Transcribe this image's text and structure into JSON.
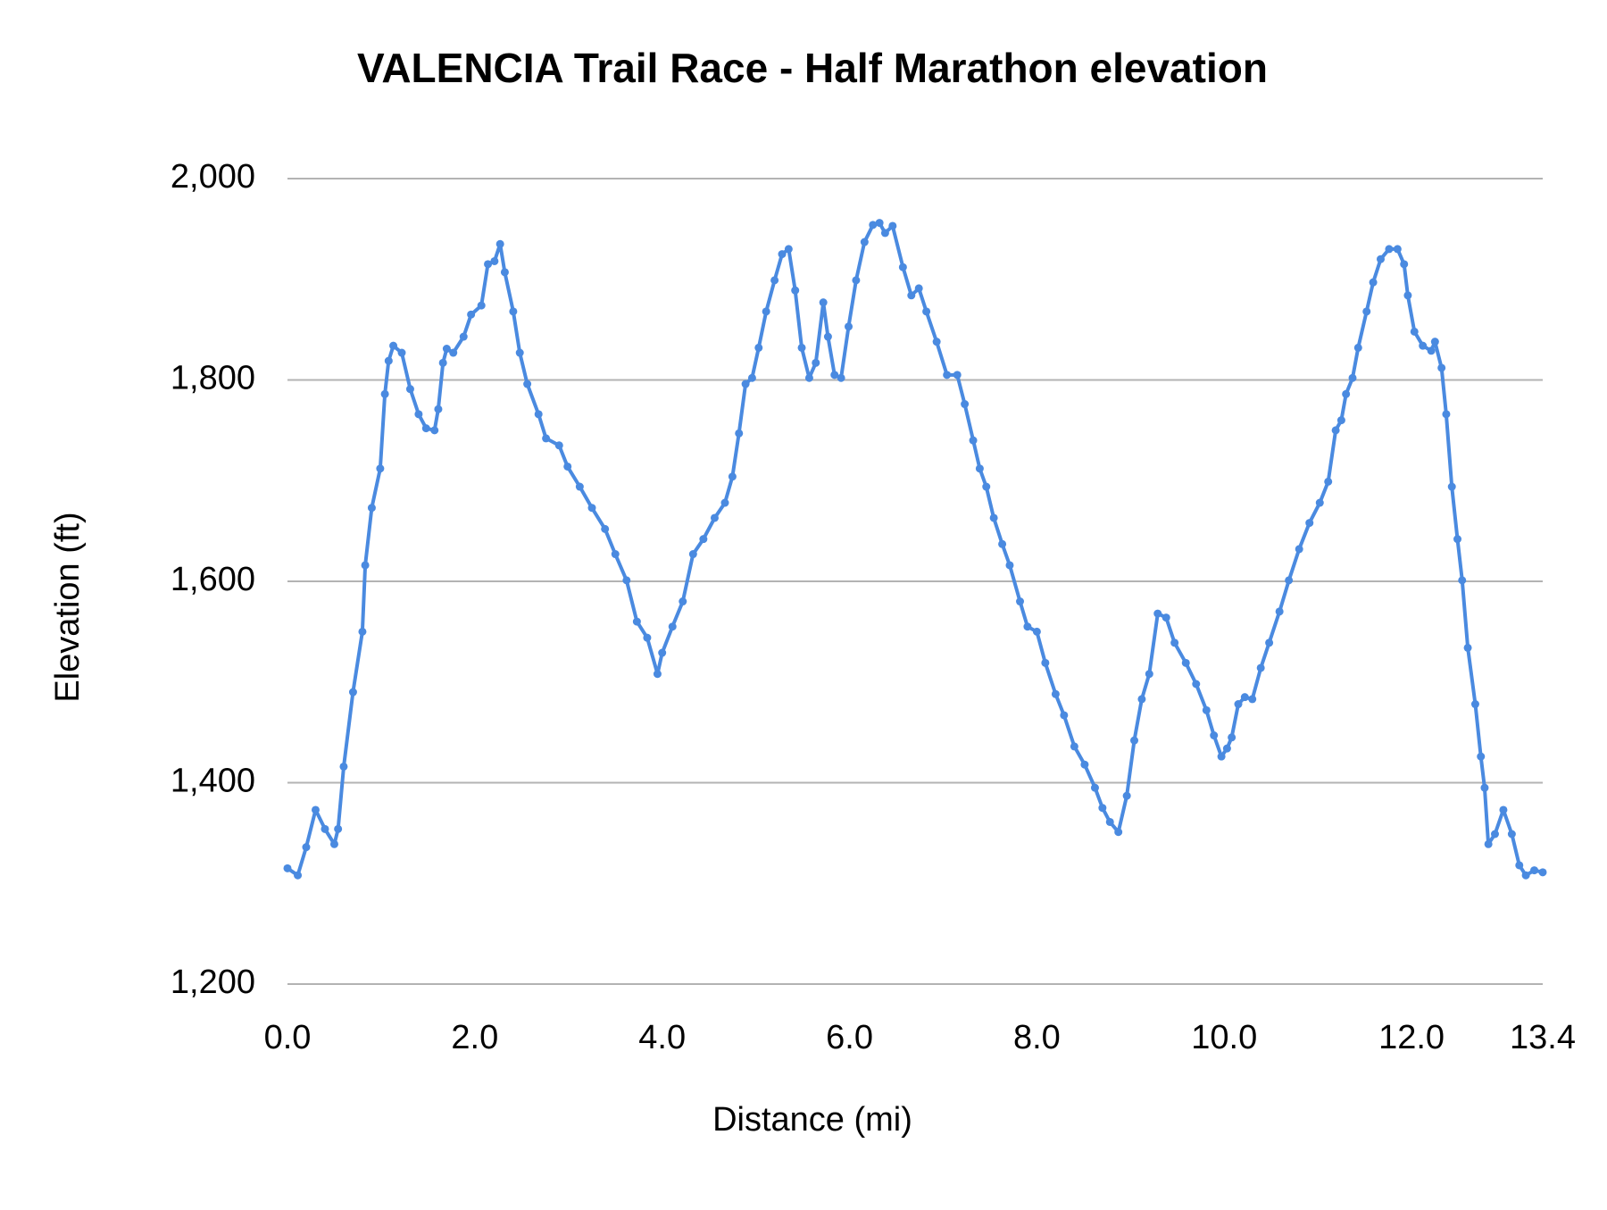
{
  "chart_data": {
    "type": "line",
    "title": "VALENCIA Trail Race - Half Marathon elevation",
    "x_label": "Distance (mi)",
    "y_label": "Elevation (ft)",
    "color": "#4a8ae0",
    "grid": true,
    "xlim": [
      0,
      13.4
    ],
    "ylim": [
      1200,
      2000
    ],
    "xticks": [
      {
        "value": 0,
        "label": "0.0"
      },
      {
        "value": 2,
        "label": "2.0"
      },
      {
        "value": 4,
        "label": "4.0"
      },
      {
        "value": 6,
        "label": "6.0"
      },
      {
        "value": 8,
        "label": "8.0"
      },
      {
        "value": 10,
        "label": "10.0"
      },
      {
        "value": 12,
        "label": "12.0"
      },
      13.4
    ],
    "yticks": [
      {
        "value": 1200,
        "label": "1,200"
      },
      {
        "value": 1400,
        "label": "1,400"
      },
      {
        "value": 1600,
        "label": "1,600"
      },
      {
        "value": 1800,
        "label": "1,800"
      },
      {
        "value": 2000,
        "label": "2,000"
      }
    ],
    "x": [
      0.0,
      0.11,
      0.2,
      0.3,
      0.4,
      0.5,
      0.54,
      0.6,
      0.7,
      0.8,
      0.83,
      0.9,
      0.99,
      1.04,
      1.08,
      1.13,
      1.22,
      1.31,
      1.4,
      1.48,
      1.57,
      1.61,
      1.66,
      1.7,
      1.77,
      1.88,
      1.96,
      2.07,
      2.14,
      2.21,
      2.27,
      2.32,
      2.41,
      2.48,
      2.56,
      2.68,
      2.76,
      2.9,
      2.99,
      3.12,
      3.25,
      3.39,
      3.5,
      3.62,
      3.73,
      3.84,
      3.95,
      4.0,
      4.11,
      4.22,
      4.33,
      4.44,
      4.56,
      4.67,
      4.75,
      4.82,
      4.89,
      4.96,
      5.03,
      5.11,
      5.2,
      5.28,
      5.35,
      5.42,
      5.49,
      5.57,
      5.64,
      5.72,
      5.77,
      5.84,
      5.91,
      5.99,
      6.07,
      6.16,
      6.25,
      6.32,
      6.38,
      6.46,
      6.57,
      6.66,
      6.74,
      6.82,
      6.93,
      7.04,
      7.15,
      7.23,
      7.32,
      7.39,
      7.46,
      7.54,
      7.63,
      7.71,
      7.82,
      7.9,
      8.0,
      8.09,
      8.2,
      8.29,
      8.4,
      8.51,
      8.62,
      8.7,
      8.78,
      8.87,
      8.96,
      9.04,
      9.12,
      9.2,
      9.29,
      9.38,
      9.47,
      9.59,
      9.7,
      9.81,
      9.89,
      9.97,
      10.03,
      10.08,
      10.15,
      10.22,
      10.3,
      10.39,
      10.48,
      10.59,
      10.69,
      10.8,
      10.91,
      11.02,
      11.11,
      11.19,
      11.25,
      11.3,
      11.37,
      11.43,
      11.52,
      11.59,
      11.67,
      11.76,
      11.85,
      11.92,
      11.96,
      12.03,
      12.12,
      12.21,
      12.25,
      12.32,
      12.37,
      12.43,
      12.49,
      12.54,
      12.6,
      12.68,
      12.74,
      12.78,
      12.82,
      12.89,
      12.98,
      13.07,
      13.15,
      13.22,
      13.31,
      13.4
    ],
    "values": [
      1315,
      1308,
      1336,
      1373,
      1354,
      1339,
      1354,
      1416,
      1490,
      1550,
      1616,
      1673,
      1712,
      1786,
      1819,
      1834,
      1827,
      1791,
      1766,
      1752,
      1750,
      1771,
      1817,
      1831,
      1827,
      1843,
      1865,
      1874,
      1915,
      1918,
      1935,
      1907,
      1868,
      1827,
      1796,
      1766,
      1742,
      1735,
      1714,
      1694,
      1673,
      1652,
      1627,
      1601,
      1560,
      1544,
      1508,
      1529,
      1555,
      1580,
      1627,
      1642,
      1663,
      1678,
      1704,
      1747,
      1796,
      1802,
      1832,
      1868,
      1899,
      1925,
      1930,
      1889,
      1832,
      1802,
      1817,
      1877,
      1843,
      1805,
      1802,
      1853,
      1899,
      1937,
      1954,
      1956,
      1946,
      1953,
      1912,
      1884,
      1891,
      1868,
      1838,
      1805,
      1805,
      1776,
      1740,
      1712,
      1694,
      1663,
      1637,
      1616,
      1580,
      1555,
      1550,
      1519,
      1488,
      1467,
      1436,
      1418,
      1395,
      1375,
      1361,
      1351,
      1387,
      1442,
      1483,
      1508,
      1568,
      1564,
      1539,
      1519,
      1498,
      1472,
      1447,
      1426,
      1434,
      1445,
      1478,
      1485,
      1483,
      1514,
      1539,
      1570,
      1601,
      1632,
      1658,
      1678,
      1699,
      1750,
      1760,
      1786,
      1802,
      1832,
      1868,
      1897,
      1920,
      1930,
      1930,
      1915,
      1884,
      1848,
      1834,
      1829,
      1838,
      1812,
      1766,
      1694,
      1642,
      1601,
      1534,
      1478,
      1426,
      1395,
      1339,
      1349,
      1373,
      1349,
      1318,
      1308,
      1313,
      1311
    ]
  }
}
